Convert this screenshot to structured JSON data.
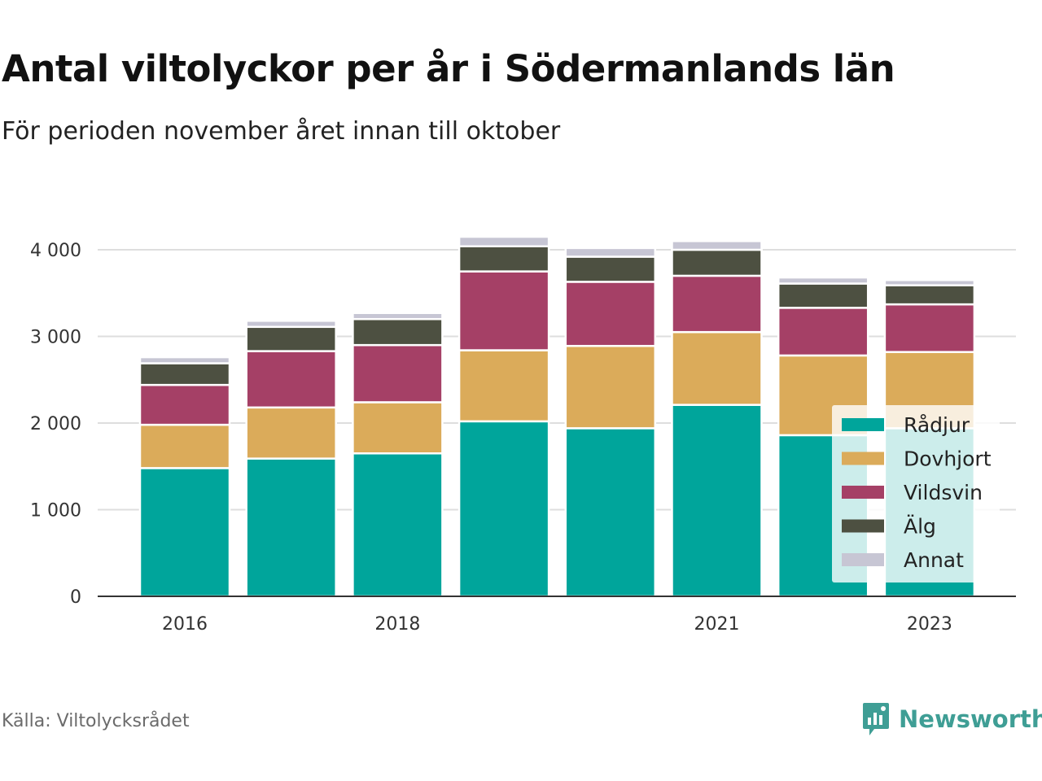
{
  "title": "Antal viltolyckor per år i Södermanlands län",
  "subtitle": "För perioden november året innan till oktober",
  "source": "Källa: Viltolycksrådet",
  "brand": {
    "name": "Newsworthy",
    "icon": "newsworthy-logo-icon",
    "color": "#3f9e95"
  },
  "chart_data": {
    "type": "bar",
    "stacked": true,
    "categories": [
      "2016",
      "2017",
      "2018",
      "2019",
      "2020",
      "2021",
      "2022",
      "2023"
    ],
    "x_tick_labels": [
      "2016",
      "",
      "2018",
      "",
      "",
      "2021",
      "",
      "2023"
    ],
    "y_ticks": [
      0,
      1000,
      2000,
      3000,
      4000
    ],
    "y_tick_labels": [
      "0",
      "1 000",
      "2 000",
      "3 000",
      "4 000"
    ],
    "ylim": [
      0,
      4300
    ],
    "grid": true,
    "legend_position": "bottom-right",
    "series": [
      {
        "name": "Rådjur",
        "color": "#00a59b",
        "values": [
          1480,
          1590,
          1650,
          2020,
          1940,
          2210,
          1860,
          1940
        ]
      },
      {
        "name": "Dovhjort",
        "color": "#dbab5a",
        "values": [
          500,
          590,
          590,
          820,
          950,
          840,
          920,
          880
        ]
      },
      {
        "name": "Vildsvin",
        "color": "#a54066",
        "values": [
          460,
          650,
          660,
          910,
          740,
          650,
          550,
          550
        ]
      },
      {
        "name": "Älg",
        "color": "#4d5041",
        "values": [
          250,
          280,
          300,
          290,
          290,
          300,
          280,
          220
        ]
      },
      {
        "name": "Annat",
        "color": "#c7c6d4",
        "values": [
          70,
          70,
          70,
          110,
          100,
          100,
          70,
          60
        ]
      }
    ]
  }
}
